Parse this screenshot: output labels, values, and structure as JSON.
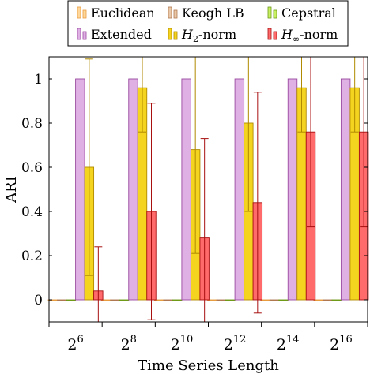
{
  "chart_data": {
    "type": "bar",
    "xlabel": "Time Series Length",
    "ylabel": "ARI",
    "categories": [
      "2^6",
      "2^8",
      "2^10",
      "2^12",
      "2^14",
      "2^16"
    ],
    "category_labels": [
      {
        "base": "2",
        "exp": "6"
      },
      {
        "base": "2",
        "exp": "8"
      },
      {
        "base": "2",
        "exp": "10"
      },
      {
        "base": "2",
        "exp": "12"
      },
      {
        "base": "2",
        "exp": "14"
      },
      {
        "base": "2",
        "exp": "16"
      }
    ],
    "ylim": [
      -0.1,
      1.1
    ],
    "yticks": [
      "0",
      "0.2",
      "0.4",
      "0.6",
      "0.8",
      "1"
    ],
    "legend_position": "top-center",
    "grid": false,
    "series": [
      {
        "name": "Euclidean",
        "color": "#ffd79a",
        "edge": "#e89c40",
        "values": [
          0,
          0,
          0,
          0,
          0,
          0
        ],
        "err_low": [
          0,
          0,
          0,
          0,
          0,
          0
        ],
        "err_high": [
          0,
          0,
          0,
          0,
          0,
          0
        ]
      },
      {
        "name": "Keogh LB",
        "color": "#e8c8a8",
        "edge": "#b07850",
        "values": [
          0,
          0,
          0,
          0,
          0,
          0
        ],
        "err_low": [
          0,
          0,
          0,
          0,
          0,
          0
        ],
        "err_high": [
          0,
          0,
          0,
          0,
          0,
          0
        ]
      },
      {
        "name": "Cepstral",
        "color": "#c8f060",
        "edge": "#6e9a18",
        "values": [
          0,
          0,
          0,
          0,
          0,
          0
        ],
        "err_low": [
          0,
          0,
          0,
          0,
          0,
          0
        ],
        "err_high": [
          0,
          0,
          0,
          0,
          0,
          0
        ]
      },
      {
        "name": "Extended",
        "color": "#dfb0e4",
        "edge": "#9a4aa0",
        "values": [
          1,
          1,
          1,
          1,
          1,
          1
        ],
        "err_low": [
          1,
          1,
          1,
          1,
          1,
          1
        ],
        "err_high": [
          1,
          1,
          1,
          1,
          1,
          1
        ]
      },
      {
        "name": "H₂-norm",
        "color": "#f5d420",
        "edge": "#b08a00",
        "values": [
          0.6,
          0.96,
          0.68,
          0.8,
          0.96,
          0.96
        ],
        "err_low": [
          0.11,
          0.76,
          0.21,
          0.4,
          0.76,
          0.76
        ],
        "err_high": [
          1.09,
          1.16,
          1.15,
          1.2,
          1.16,
          1.16
        ]
      },
      {
        "name": "H∞-norm",
        "color": "#ff6a6a",
        "edge": "#a81010",
        "values": [
          0.04,
          0.4,
          0.28,
          0.44,
          0.76,
          0.76
        ],
        "err_low": [
          -0.16,
          -0.09,
          -0.17,
          -0.06,
          0.33,
          0.33
        ],
        "err_high": [
          0.24,
          0.89,
          0.73,
          0.94,
          1.19,
          1.19
        ]
      }
    ],
    "legend_label_parts": [
      {
        "main": "Euclidean",
        "sub": ""
      },
      {
        "main": "Keogh LB",
        "sub": ""
      },
      {
        "main": "Cepstral",
        "sub": ""
      },
      {
        "main": "Extended",
        "sub": ""
      },
      {
        "main": "H",
        "sub": "2",
        "suffix": "-norm"
      },
      {
        "main": "H",
        "sub": "∞",
        "suffix": "-norm"
      }
    ]
  }
}
